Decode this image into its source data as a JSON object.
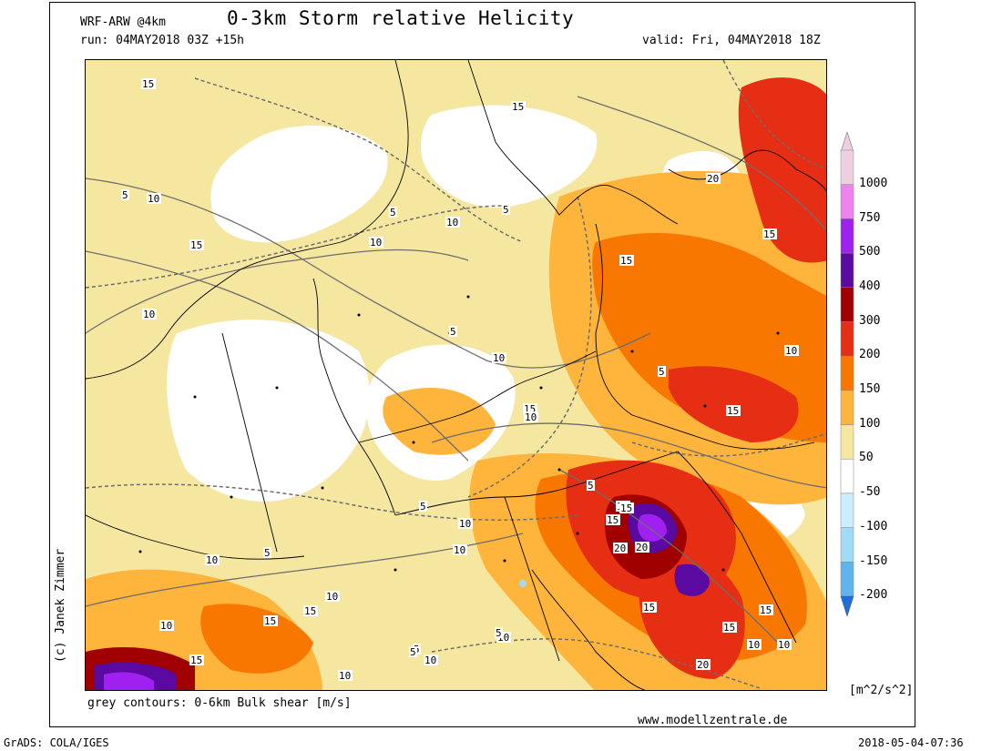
{
  "header": {
    "model": "WRF-ARW @4km",
    "title": "0-3km Storm relative Helicity",
    "run": "run: 04MAY2018 03Z +15h",
    "valid": "valid: Fri, 04MAY2018 18Z"
  },
  "footer": {
    "contour_note": "grey contours: 0-6km Bulk shear [m/s]",
    "website": "www.modellzentrale.de",
    "author": "(c) Janek Zimmer",
    "software": "GrADS: COLA/IGES",
    "timestamp": "2018-05-04-07:36"
  },
  "colorbar": {
    "units": "[m^2/s^2]",
    "levels": [
      {
        "label": "1000",
        "color": "#eecfe0"
      },
      {
        "label": "750",
        "color": "#ee82ee"
      },
      {
        "label": "500",
        "color": "#a020f0"
      },
      {
        "label": "400",
        "color": "#5a0aa0"
      },
      {
        "label": "300",
        "color": "#a00000"
      },
      {
        "label": "200",
        "color": "#e52e14"
      },
      {
        "label": "150",
        "color": "#f77700"
      },
      {
        "label": "100",
        "color": "#ffb43c"
      },
      {
        "label": "50",
        "color": "#f5e6a0"
      },
      {
        "label": "-50",
        "color": "#ffffff"
      },
      {
        "label": "-100",
        "color": "#cdeeff"
      },
      {
        "label": "-150",
        "color": "#a0dcf5"
      },
      {
        "label": "-200",
        "color": "#5fb4ec"
      }
    ],
    "bottom_color": "#1e6ee0"
  },
  "contour_labels": [
    "15",
    "5",
    "10",
    "15",
    "10",
    "5",
    "15",
    "10",
    "5",
    "10",
    "15",
    "20",
    "15",
    "5",
    "10",
    "10",
    "5",
    "15",
    "15",
    "10",
    "15",
    "5",
    "15",
    "15",
    "20",
    "5",
    "10",
    "10",
    "5",
    "10",
    "10",
    "15",
    "15",
    "10",
    "15",
    "10",
    "5",
    "10",
    "5",
    "15",
    "15",
    "20",
    "10",
    "15",
    "10",
    "5",
    "10",
    "20"
  ]
}
